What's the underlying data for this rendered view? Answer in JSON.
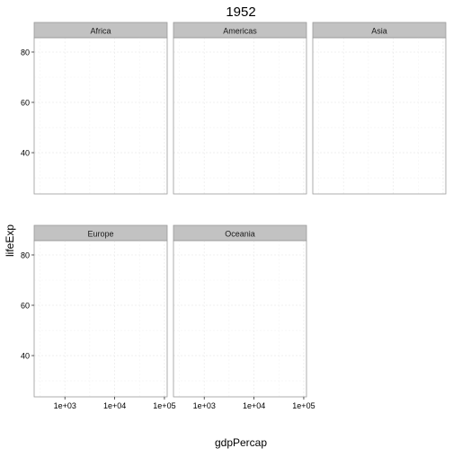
{
  "chart_data": {
    "type": "scatter",
    "title": "1952",
    "xlabel": "gdpPercap",
    "ylabel": "lifeExp",
    "x_scale": "log10",
    "x_ticks": [
      1000,
      10000,
      100000
    ],
    "x_tick_labels": [
      "1e+03",
      "1e+04",
      "1e+05"
    ],
    "xlim": [
      241,
      113523
    ],
    "y_ticks": [
      40,
      60,
      80
    ],
    "y_tick_labels": [
      "40",
      "60",
      "80"
    ],
    "ylim": [
      23.6,
      85.7
    ],
    "grid": true,
    "facets": [
      {
        "label": "Africa",
        "points": []
      },
      {
        "label": "Americas",
        "points": []
      },
      {
        "label": "Asia",
        "points": []
      },
      {
        "label": "Europe",
        "points": []
      },
      {
        "label": "Oceania",
        "points": []
      }
    ],
    "colors": {
      "strip_fill": "#c2c2c2",
      "panel_border": "#9a9a9a",
      "grid_major": "#ececec",
      "grid_minor": "#f4f4f4",
      "text": "#000000",
      "axis_text": "#000000"
    }
  }
}
